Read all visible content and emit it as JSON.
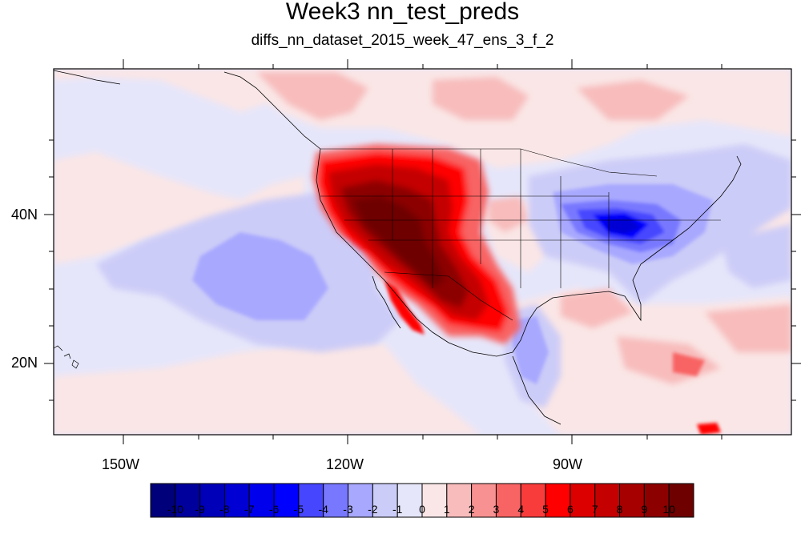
{
  "title": "Week3 nn_test_preds",
  "subtitle": "diffs_nn_dataset_2015_week_47_ens_3_f_2",
  "axes": {
    "x_ticks": [
      "150W",
      "120W",
      "90W"
    ],
    "y_ticks": [
      "40N",
      "20N"
    ]
  },
  "colorbar": {
    "labels": [
      "-10",
      "-9",
      "-8",
      "-7",
      "-6",
      "-5",
      "-4",
      "-3",
      "-2",
      "-1",
      "0",
      "1",
      "2",
      "3",
      "4",
      "5",
      "6",
      "7",
      "8",
      "9",
      "10"
    ],
    "colors": [
      "#00007a",
      "#00009c",
      "#0000b8",
      "#0000d4",
      "#0000ec",
      "#0000ff",
      "#4646ff",
      "#7878ff",
      "#a8a8ff",
      "#ccccf8",
      "#e6e6fa",
      "#fae6e6",
      "#f8bcbc",
      "#f89292",
      "#f86464",
      "#f83c3c",
      "#ff0000",
      "#dc0000",
      "#c40000",
      "#a60000",
      "#8c0000",
      "#6e0000"
    ]
  },
  "colors": {
    "background_neutral": "#e6e6fa",
    "positive_light": "#fae6e6",
    "negative_light": "#ccccf8"
  }
}
